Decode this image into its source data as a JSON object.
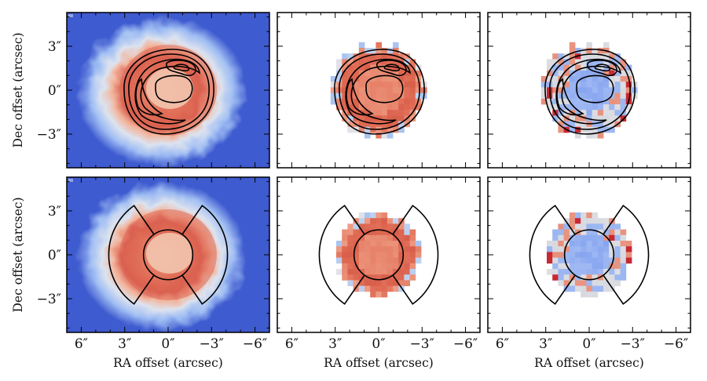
{
  "chart_data": {
    "type": "heatmap",
    "title": "",
    "layout": "2x3 panel grid",
    "xlabel": "RA offset (arcsec)",
    "ylabel": "Dec offset (arcsec)",
    "xlim": [
      7.0,
      -7.0
    ],
    "ylim": [
      -5.3,
      5.3
    ],
    "x_ticks": [
      6,
      3,
      0,
      -3,
      -6
    ],
    "y_ticks": [
      3,
      0,
      -3
    ],
    "x_tick_labels": [
      "6″",
      "3″",
      "0″",
      "−3″",
      "−6″"
    ],
    "y_tick_labels": [
      "3″",
      "0″",
      "−3″"
    ],
    "colormap": "coolwarm",
    "panels": [
      {
        "id": "r1c1",
        "row": 1,
        "col": 1,
        "image": "full-nebula",
        "overlay": "intensity-contours"
      },
      {
        "id": "r1c2",
        "row": 1,
        "col": 2,
        "image": "pixelated-map-warm",
        "overlay": "intensity-contours"
      },
      {
        "id": "r1c3",
        "row": 1,
        "col": 3,
        "image": "pixelated-residual",
        "overlay": "intensity-contours"
      },
      {
        "id": "r2c1",
        "row": 2,
        "col": 1,
        "image": "full-nebula",
        "overlay": "aperture-regions"
      },
      {
        "id": "r2c2",
        "row": 2,
        "col": 2,
        "image": "pixelated-map-warm",
        "overlay": "aperture-regions"
      },
      {
        "id": "r2c3",
        "row": 2,
        "col": 3,
        "image": "pixelated-residual",
        "overlay": "aperture-regions"
      }
    ],
    "regions": {
      "inner_circle_radius_arcsec": 1.7,
      "outer_annulus_radius_arcsec": 4.1,
      "sector_half_angle_deg": 55
    }
  }
}
